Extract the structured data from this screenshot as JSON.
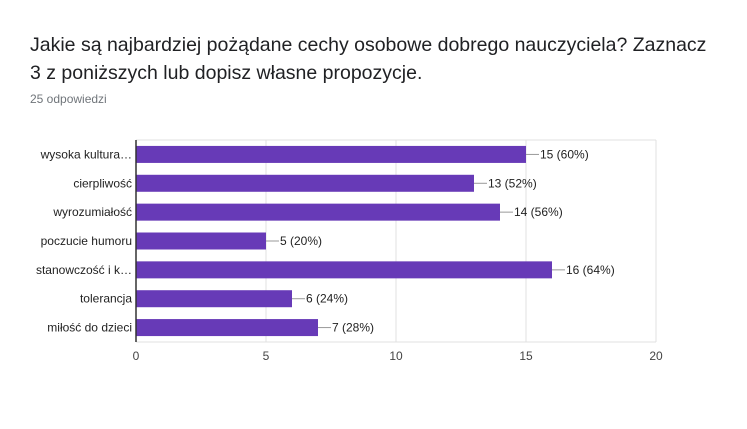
{
  "header": {
    "title": "Jakie są najbardziej pożądane cechy osobowe dobrego nauczyciela? Zaznacz 3 z poniższych lub dopisz własne propozycje.",
    "responses": "25 odpowiedzi"
  },
  "chart_data": {
    "type": "bar",
    "orientation": "horizontal",
    "categories": [
      "wysoka kultura…",
      "cierpliwość",
      "wyrozumiałość",
      "poczucie humoru",
      "stanowczość i k…",
      "tolerancja",
      "miłość do dzieci"
    ],
    "values": [
      15,
      13,
      14,
      5,
      16,
      6,
      7
    ],
    "data_labels": [
      "15 (60%)",
      "13 (52%)",
      "14 (56%)",
      "5 (20%)",
      "16 (64%)",
      "6 (24%)",
      "7 (28%)"
    ],
    "x_ticks": [
      "0",
      "5",
      "10",
      "15",
      "20"
    ],
    "xlim": [
      0,
      20
    ],
    "grid": true,
    "bar_color": "#673ab7"
  }
}
